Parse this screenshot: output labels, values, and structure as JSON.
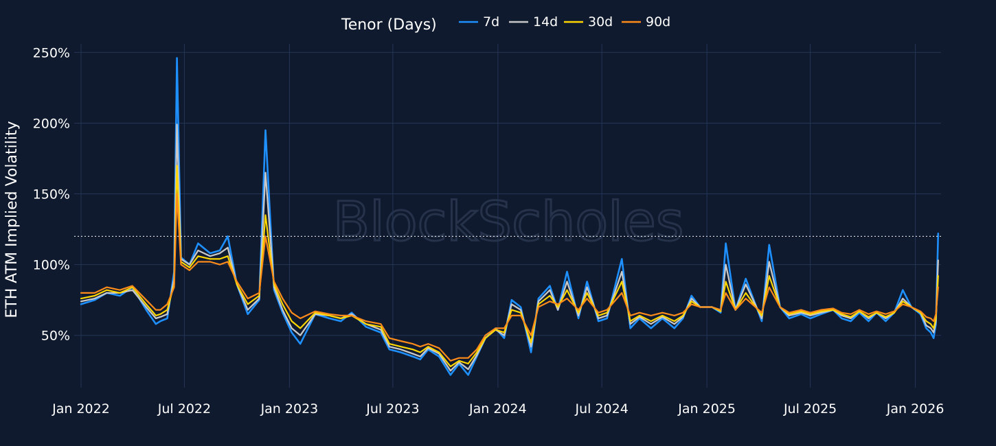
{
  "chart_data": {
    "type": "line",
    "title": "",
    "ylabel": "ETH ATM Implied Volatility",
    "xlabel": "",
    "legend": {
      "title": "Tenor (Days)",
      "placement": "top-center"
    },
    "watermark": "BlockScholes",
    "x_range": [
      "2021-12-20",
      "2026-02-15"
    ],
    "ylim": [
      13,
      256
    ],
    "y_ticks": [
      50,
      100,
      150,
      200,
      250
    ],
    "y_tick_labels": [
      "50%",
      "100%",
      "150%",
      "200%",
      "250%"
    ],
    "x_ticks": [
      "2022-01-01",
      "2022-07-01",
      "2023-01-01",
      "2023-07-01",
      "2024-01-01",
      "2024-07-01",
      "2025-01-01",
      "2025-07-01",
      "2026-01-01"
    ],
    "x_tick_labels": [
      "Jan 2022",
      "Jul 2022",
      "Jan 2023",
      "Jul 2023",
      "Jan 2024",
      "Jul 2024",
      "Jan 2025",
      "Jul 2025",
      "Jan 2026"
    ],
    "grid": true,
    "reference_line": {
      "y": 120,
      "style": "dotted"
    },
    "series": [
      {
        "name": "7d",
        "color": "#1e90ff",
        "x": [
          "2022-01-01",
          "2022-01-25",
          "2022-02-15",
          "2022-03-10",
          "2022-04-01",
          "2022-04-25",
          "2022-05-12",
          "2022-05-20",
          "2022-06-01",
          "2022-06-13",
          "2022-06-18",
          "2022-06-25",
          "2022-07-10",
          "2022-07-25",
          "2022-08-15",
          "2022-09-01",
          "2022-09-15",
          "2022-10-01",
          "2022-10-20",
          "2022-11-09",
          "2022-11-20",
          "2022-12-05",
          "2022-12-20",
          "2023-01-05",
          "2023-01-20",
          "2023-02-15",
          "2023-03-12",
          "2023-04-01",
          "2023-04-20",
          "2023-05-15",
          "2023-06-10",
          "2023-06-25",
          "2023-07-15",
          "2023-08-05",
          "2023-08-18",
          "2023-09-01",
          "2023-09-20",
          "2023-10-10",
          "2023-10-25",
          "2023-11-10",
          "2023-11-25",
          "2023-12-10",
          "2023-12-28",
          "2024-01-12",
          "2024-01-25",
          "2024-02-10",
          "2024-02-28",
          "2024-03-12",
          "2024-04-01",
          "2024-04-15",
          "2024-05-01",
          "2024-05-21",
          "2024-06-05",
          "2024-06-25",
          "2024-07-10",
          "2024-08-05",
          "2024-08-20",
          "2024-09-05",
          "2024-09-25",
          "2024-10-15",
          "2024-11-05",
          "2024-11-20",
          "2024-12-05",
          "2024-12-20",
          "2025-01-10",
          "2025-01-25",
          "2025-02-03",
          "2025-02-20",
          "2025-03-10",
          "2025-04-07",
          "2025-04-20",
          "2025-05-09",
          "2025-05-25",
          "2025-06-15",
          "2025-07-01",
          "2025-07-20",
          "2025-08-10",
          "2025-08-25",
          "2025-09-10",
          "2025-09-25",
          "2025-10-11",
          "2025-10-25",
          "2025-11-10",
          "2025-11-25",
          "2025-12-10",
          "2025-12-25",
          "2026-01-10",
          "2026-01-20",
          "2026-01-28",
          "2026-02-02",
          "2026-02-06",
          "2026-02-10"
        ],
        "y": [
          72,
          75,
          80,
          78,
          84,
          68,
          58,
          60,
          62,
          95,
          246,
          105,
          100,
          115,
          108,
          110,
          120,
          86,
          65,
          75,
          195,
          82,
          66,
          52,
          44,
          65,
          62,
          60,
          66,
          56,
          52,
          40,
          38,
          35,
          33,
          40,
          35,
          22,
          30,
          22,
          35,
          48,
          55,
          48,
          75,
          70,
          38,
          76,
          85,
          68,
          95,
          62,
          88,
          60,
          62,
          104,
          55,
          62,
          55,
          62,
          55,
          62,
          78,
          70,
          70,
          66,
          115,
          68,
          90,
          60,
          114,
          70,
          62,
          65,
          62,
          65,
          68,
          62,
          60,
          66,
          60,
          66,
          60,
          66,
          82,
          70,
          65,
          55,
          52,
          48,
          58,
          122
        ],
        "mark_width": 2.6
      },
      {
        "name": "14d",
        "color": "#c8c8c8",
        "x": [
          "2022-01-01",
          "2022-01-25",
          "2022-02-15",
          "2022-03-10",
          "2022-04-01",
          "2022-04-25",
          "2022-05-12",
          "2022-05-20",
          "2022-06-01",
          "2022-06-13",
          "2022-06-18",
          "2022-06-25",
          "2022-07-10",
          "2022-07-25",
          "2022-08-15",
          "2022-09-01",
          "2022-09-15",
          "2022-10-01",
          "2022-10-20",
          "2022-11-09",
          "2022-11-20",
          "2022-12-05",
          "2022-12-20",
          "2023-01-05",
          "2023-01-20",
          "2023-02-15",
          "2023-03-12",
          "2023-04-01",
          "2023-04-20",
          "2023-05-15",
          "2023-06-10",
          "2023-06-25",
          "2023-07-15",
          "2023-08-05",
          "2023-08-18",
          "2023-09-01",
          "2023-09-20",
          "2023-10-10",
          "2023-10-25",
          "2023-11-10",
          "2023-11-25",
          "2023-12-10",
          "2023-12-28",
          "2024-01-12",
          "2024-01-25",
          "2024-02-10",
          "2024-02-28",
          "2024-03-12",
          "2024-04-01",
          "2024-04-15",
          "2024-05-01",
          "2024-05-21",
          "2024-06-05",
          "2024-06-25",
          "2024-07-10",
          "2024-08-05",
          "2024-08-20",
          "2024-09-05",
          "2024-09-25",
          "2024-10-15",
          "2024-11-05",
          "2024-11-20",
          "2024-12-05",
          "2024-12-20",
          "2025-01-10",
          "2025-01-25",
          "2025-02-03",
          "2025-02-20",
          "2025-03-10",
          "2025-04-07",
          "2025-04-20",
          "2025-05-09",
          "2025-05-25",
          "2025-06-15",
          "2025-07-01",
          "2025-07-20",
          "2025-08-10",
          "2025-08-25",
          "2025-09-10",
          "2025-09-25",
          "2025-10-11",
          "2025-10-25",
          "2025-11-10",
          "2025-11-25",
          "2025-12-10",
          "2025-12-25",
          "2026-01-10",
          "2026-01-20",
          "2026-01-28",
          "2026-02-02",
          "2026-02-06",
          "2026-02-10"
        ],
        "y": [
          74,
          76,
          80,
          80,
          82,
          70,
          62,
          63,
          65,
          90,
          199,
          104,
          100,
          110,
          106,
          108,
          112,
          86,
          68,
          76,
          165,
          84,
          68,
          55,
          50,
          65,
          64,
          62,
          65,
          58,
          54,
          42,
          40,
          37,
          35,
          41,
          37,
          25,
          31,
          26,
          36,
          48,
          54,
          50,
          72,
          68,
          42,
          74,
          82,
          68,
          88,
          64,
          84,
          62,
          64,
          95,
          58,
          63,
          58,
          63,
          58,
          63,
          76,
          70,
          70,
          67,
          100,
          68,
          86,
          62,
          102,
          70,
          64,
          66,
          64,
          66,
          68,
          64,
          62,
          67,
          62,
          66,
          62,
          66,
          76,
          70,
          66,
          57,
          55,
          52,
          60,
          103
        ],
        "mark_width": 2.3
      },
      {
        "name": "30d",
        "color": "#ffd700",
        "x": [
          "2022-01-01",
          "2022-01-25",
          "2022-02-15",
          "2022-03-10",
          "2022-04-01",
          "2022-04-25",
          "2022-05-12",
          "2022-05-20",
          "2022-06-01",
          "2022-06-13",
          "2022-06-18",
          "2022-06-25",
          "2022-07-10",
          "2022-07-25",
          "2022-08-15",
          "2022-09-01",
          "2022-09-15",
          "2022-10-01",
          "2022-10-20",
          "2022-11-09",
          "2022-11-20",
          "2022-12-05",
          "2022-12-20",
          "2023-01-05",
          "2023-01-20",
          "2023-02-15",
          "2023-03-12",
          "2023-04-01",
          "2023-04-20",
          "2023-05-15",
          "2023-06-10",
          "2023-06-25",
          "2023-07-15",
          "2023-08-05",
          "2023-08-18",
          "2023-09-01",
          "2023-09-20",
          "2023-10-10",
          "2023-10-25",
          "2023-11-10",
          "2023-11-25",
          "2023-12-10",
          "2023-12-28",
          "2024-01-12",
          "2024-01-25",
          "2024-02-10",
          "2024-02-28",
          "2024-03-12",
          "2024-04-01",
          "2024-04-15",
          "2024-05-01",
          "2024-05-21",
          "2024-06-05",
          "2024-06-25",
          "2024-07-10",
          "2024-08-05",
          "2024-08-20",
          "2024-09-05",
          "2024-09-25",
          "2024-10-15",
          "2024-11-05",
          "2024-11-20",
          "2024-12-05",
          "2024-12-20",
          "2025-01-10",
          "2025-01-25",
          "2025-02-03",
          "2025-02-20",
          "2025-03-10",
          "2025-04-07",
          "2025-04-20",
          "2025-05-09",
          "2025-05-25",
          "2025-06-15",
          "2025-07-01",
          "2025-07-20",
          "2025-08-10",
          "2025-08-25",
          "2025-09-10",
          "2025-09-25",
          "2025-10-11",
          "2025-10-25",
          "2025-11-10",
          "2025-11-25",
          "2025-12-10",
          "2025-12-25",
          "2026-01-10",
          "2026-01-20",
          "2026-01-28",
          "2026-02-02",
          "2026-02-06",
          "2026-02-10"
        ],
        "y": [
          76,
          78,
          82,
          80,
          84,
          72,
          64,
          65,
          68,
          86,
          170,
          102,
          98,
          106,
          104,
          104,
          106,
          86,
          72,
          78,
          135,
          86,
          72,
          60,
          55,
          66,
          64,
          62,
          64,
          58,
          56,
          44,
          42,
          40,
          38,
          42,
          38,
          28,
          32,
          30,
          38,
          48,
          54,
          52,
          68,
          66,
          45,
          72,
          78,
          70,
          82,
          66,
          80,
          64,
          66,
          88,
          60,
          64,
          60,
          64,
          60,
          64,
          74,
          70,
          70,
          67,
          88,
          68,
          80,
          64,
          92,
          70,
          65,
          67,
          65,
          67,
          68,
          65,
          63,
          67,
          63,
          66,
          63,
          66,
          74,
          70,
          66,
          60,
          58,
          55,
          62,
          92
        ],
        "mark_width": 2.2
      },
      {
        "name": "90d",
        "color": "#ff8c1a",
        "x": [
          "2022-01-01",
          "2022-01-25",
          "2022-02-15",
          "2022-03-10",
          "2022-04-01",
          "2022-04-25",
          "2022-05-12",
          "2022-05-20",
          "2022-06-01",
          "2022-06-13",
          "2022-06-18",
          "2022-06-25",
          "2022-07-10",
          "2022-07-25",
          "2022-08-15",
          "2022-09-01",
          "2022-09-15",
          "2022-10-01",
          "2022-10-20",
          "2022-11-09",
          "2022-11-20",
          "2022-12-05",
          "2022-12-20",
          "2023-01-05",
          "2023-01-20",
          "2023-02-15",
          "2023-03-12",
          "2023-04-01",
          "2023-04-20",
          "2023-05-15",
          "2023-06-10",
          "2023-06-25",
          "2023-07-15",
          "2023-08-05",
          "2023-08-18",
          "2023-09-01",
          "2023-09-20",
          "2023-10-10",
          "2023-10-25",
          "2023-11-10",
          "2023-11-25",
          "2023-12-10",
          "2023-12-28",
          "2024-01-12",
          "2024-01-25",
          "2024-02-10",
          "2024-02-28",
          "2024-03-12",
          "2024-04-01",
          "2024-04-15",
          "2024-05-01",
          "2024-05-21",
          "2024-06-05",
          "2024-06-25",
          "2024-07-10",
          "2024-08-05",
          "2024-08-20",
          "2024-09-05",
          "2024-09-25",
          "2024-10-15",
          "2024-11-05",
          "2024-11-20",
          "2024-12-05",
          "2024-12-20",
          "2025-01-10",
          "2025-01-25",
          "2025-02-03",
          "2025-02-20",
          "2025-03-10",
          "2025-04-07",
          "2025-04-20",
          "2025-05-09",
          "2025-05-25",
          "2025-06-15",
          "2025-07-01",
          "2025-07-20",
          "2025-08-10",
          "2025-08-25",
          "2025-09-10",
          "2025-09-25",
          "2025-10-11",
          "2025-10-25",
          "2025-11-10",
          "2025-11-25",
          "2025-12-10",
          "2025-12-25",
          "2026-01-10",
          "2026-01-20",
          "2026-01-28",
          "2026-02-02",
          "2026-02-06",
          "2026-02-10"
        ],
        "y": [
          80,
          80,
          84,
          82,
          85,
          75,
          68,
          68,
          72,
          84,
          150,
          100,
          96,
          102,
          102,
          100,
          102,
          88,
          76,
          80,
          120,
          88,
          76,
          66,
          62,
          67,
          65,
          64,
          64,
          60,
          58,
          48,
          46,
          44,
          42,
          44,
          41,
          32,
          34,
          34,
          40,
          50,
          55,
          55,
          64,
          64,
          50,
          70,
          74,
          72,
          76,
          68,
          76,
          66,
          68,
          80,
          64,
          66,
          64,
          66,
          64,
          66,
          72,
          70,
          70,
          68,
          80,
          68,
          76,
          66,
          84,
          70,
          66,
          68,
          66,
          68,
          69,
          66,
          65,
          68,
          65,
          67,
          65,
          67,
          72,
          70,
          67,
          63,
          62,
          60,
          65,
          84
        ],
        "mark_width": 2.2
      }
    ]
  }
}
